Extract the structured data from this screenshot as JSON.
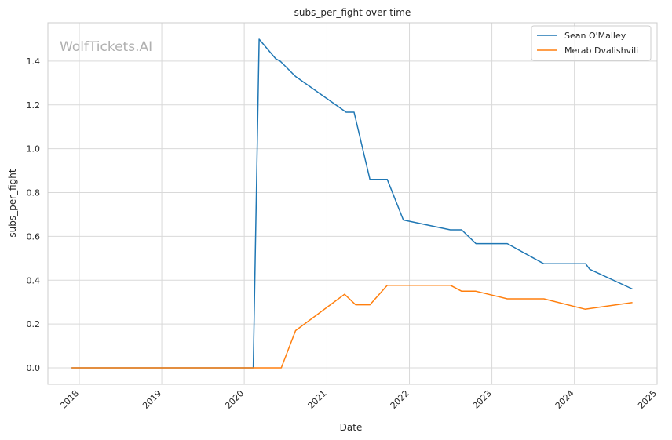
{
  "watermark": "WolfTickets.AI",
  "chart_data": {
    "type": "line",
    "title": "subs_per_fight over time",
    "xlabel": "Date",
    "ylabel": "subs_per_fight",
    "xlim": [
      "2017-08-15",
      "2025-01-01"
    ],
    "ylim": [
      -0.075,
      1.575
    ],
    "x_ticks": [
      "2018",
      "2019",
      "2020",
      "2021",
      "2022",
      "2023",
      "2024",
      "2025"
    ],
    "y_ticks": [
      "0.0",
      "0.2",
      "0.4",
      "0.6",
      "0.8",
      "1.0",
      "1.2",
      "1.4"
    ],
    "grid": true,
    "legend_position": "top-right",
    "series": [
      {
        "name": "Sean O'Malley",
        "color": "#1f77b4",
        "points": [
          [
            "2017-11-28",
            0.0
          ],
          [
            "2020-02-10",
            0.0
          ],
          [
            "2020-03-07",
            1.5
          ],
          [
            "2020-05-20",
            1.41
          ],
          [
            "2020-06-08",
            1.4
          ],
          [
            "2020-08-15",
            1.33
          ],
          [
            "2021-03-27",
            1.167
          ],
          [
            "2021-05-01",
            1.167
          ],
          [
            "2021-07-10",
            0.86
          ],
          [
            "2021-09-25",
            0.86
          ],
          [
            "2021-12-05",
            0.675
          ],
          [
            "2022-07-01",
            0.63
          ],
          [
            "2022-08-20",
            0.63
          ],
          [
            "2022-10-22",
            0.567
          ],
          [
            "2023-03-10",
            0.567
          ],
          [
            "2023-08-19",
            0.475
          ],
          [
            "2024-02-20",
            0.475
          ],
          [
            "2024-03-09",
            0.45
          ],
          [
            "2024-09-14",
            0.36
          ]
        ]
      },
      {
        "name": "Merab Dvalishvili",
        "color": "#ff7f0e",
        "points": [
          [
            "2017-11-28",
            0.0
          ],
          [
            "2020-06-13",
            0.0
          ],
          [
            "2020-08-15",
            0.17
          ],
          [
            "2021-03-20",
            0.336
          ],
          [
            "2021-05-08",
            0.288
          ],
          [
            "2021-07-10",
            0.288
          ],
          [
            "2021-09-25",
            0.377
          ],
          [
            "2022-07-01",
            0.377
          ],
          [
            "2022-08-20",
            0.35
          ],
          [
            "2022-10-22",
            0.35
          ],
          [
            "2023-03-10",
            0.315
          ],
          [
            "2023-08-19",
            0.315
          ],
          [
            "2024-02-17",
            0.268
          ],
          [
            "2024-09-14",
            0.298
          ]
        ]
      }
    ]
  }
}
